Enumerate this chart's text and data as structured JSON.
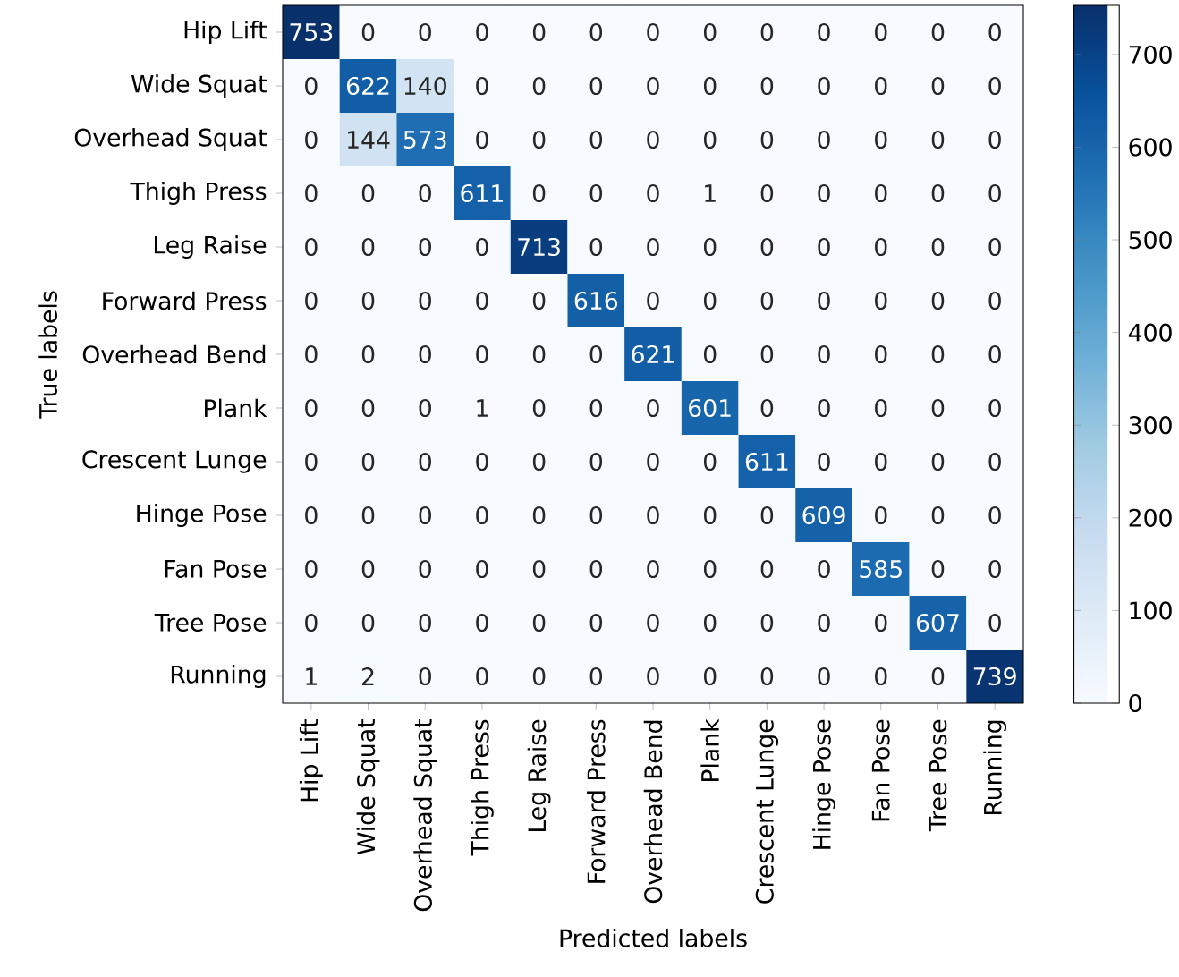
{
  "chart_data": {
    "type": "heatmap",
    "xlabel": "Predicted labels",
    "ylabel": "True labels",
    "categories": [
      "Hip Lift",
      "Wide Squat",
      "Overhead Squat",
      "Thigh Press",
      "Leg Raise",
      "Forward Press",
      "Overhead Bend",
      "Plank",
      "Crescent Lunge",
      "Hinge Pose",
      "Fan Pose",
      "Tree Pose",
      "Running"
    ],
    "y_categories": [
      "Hip Lift",
      "Wide Squat",
      "Overhead Squat",
      "Thigh Press",
      "Leg Raise",
      "Forward Press",
      "Overhead Bend",
      "Plank",
      "Crescent Lunge",
      "Hinge Pose",
      "Fan Pose",
      "Tree Pose",
      "Running"
    ],
    "cells": [
      [
        753,
        0,
        0,
        0,
        0,
        0,
        0,
        0,
        0,
        0,
        0,
        0,
        0
      ],
      [
        0,
        622,
        140,
        0,
        0,
        0,
        0,
        0,
        0,
        0,
        0,
        0,
        0
      ],
      [
        0,
        144,
        573,
        0,
        0,
        0,
        0,
        0,
        0,
        0,
        0,
        0,
        0
      ],
      [
        0,
        0,
        0,
        611,
        0,
        0,
        0,
        1,
        0,
        0,
        0,
        0,
        0
      ],
      [
        0,
        0,
        0,
        0,
        713,
        0,
        0,
        0,
        0,
        0,
        0,
        0,
        0
      ],
      [
        0,
        0,
        0,
        0,
        0,
        616,
        0,
        0,
        0,
        0,
        0,
        0,
        0
      ],
      [
        0,
        0,
        0,
        0,
        0,
        0,
        621,
        0,
        0,
        0,
        0,
        0,
        0
      ],
      [
        0,
        0,
        0,
        1,
        0,
        0,
        0,
        601,
        0,
        0,
        0,
        0,
        0
      ],
      [
        0,
        0,
        0,
        0,
        0,
        0,
        0,
        0,
        611,
        0,
        0,
        0,
        0
      ],
      [
        0,
        0,
        0,
        0,
        0,
        0,
        0,
        0,
        0,
        609,
        0,
        0,
        0
      ],
      [
        0,
        0,
        0,
        0,
        0,
        0,
        0,
        0,
        0,
        0,
        585,
        0,
        0
      ],
      [
        0,
        0,
        0,
        0,
        0,
        0,
        0,
        0,
        0,
        0,
        0,
        607,
        0
      ],
      [
        1,
        2,
        0,
        0,
        0,
        0,
        0,
        0,
        0,
        0,
        0,
        0,
        739
      ]
    ],
    "clim": [
      0,
      753
    ],
    "cticks": [
      0,
      100,
      200,
      300,
      400,
      500,
      600,
      700
    ],
    "data_labels": true
  }
}
